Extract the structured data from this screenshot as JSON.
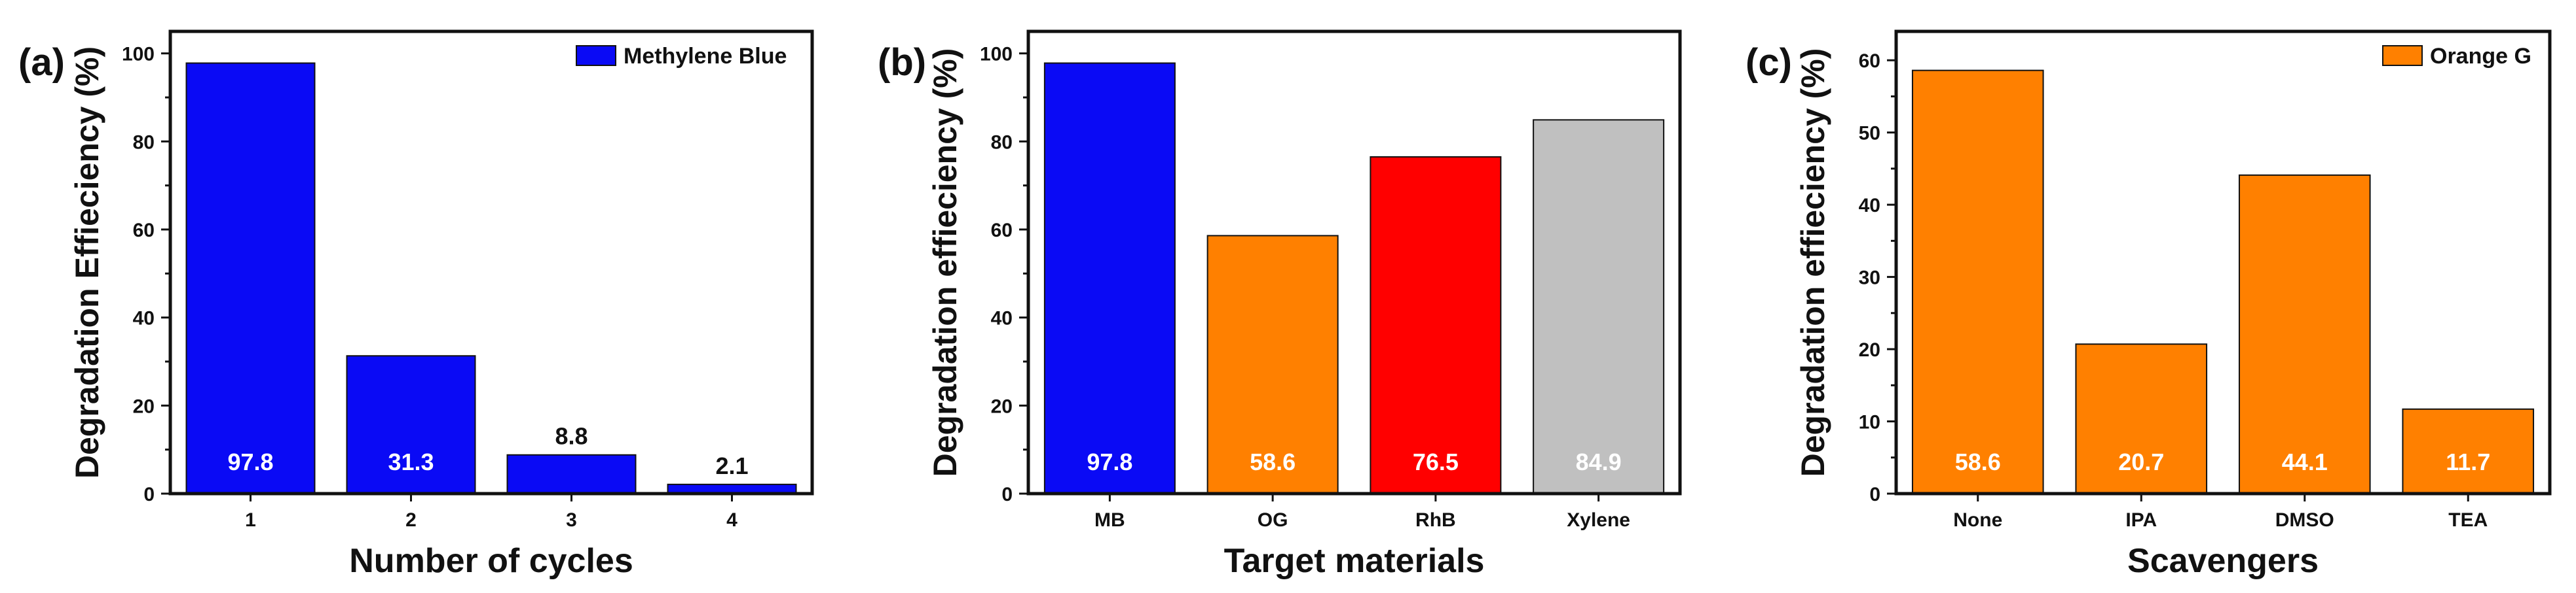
{
  "chart_data": [
    {
      "type": "bar",
      "panel_label": "(a)",
      "categories": [
        "1",
        "2",
        "3",
        "4"
      ],
      "values": [
        97.8,
        31.3,
        8.8,
        2.1
      ],
      "value_labels": [
        "97.8",
        "31.3",
        "8.8",
        "2.1"
      ],
      "colors": [
        "#0a0af5",
        "#0a0af5",
        "#0a0af5",
        "#0a0af5"
      ],
      "xlabel": "Number of cycles",
      "ylabel": "Degradation Effieciency (%)",
      "ylim": [
        0,
        105
      ],
      "yticks": [
        0,
        20,
        40,
        60,
        80,
        100
      ],
      "legend": {
        "label": "Methylene Blue",
        "color": "#0a0af5",
        "position": "top-right"
      },
      "grid": false
    },
    {
      "type": "bar",
      "panel_label": "(b)",
      "categories": [
        "MB",
        "OG",
        "RhB",
        "Xylene"
      ],
      "values": [
        97.8,
        58.6,
        76.5,
        84.9
      ],
      "value_labels": [
        "97.8",
        "58.6",
        "76.5",
        "84.9"
      ],
      "colors": [
        "#0a0af5",
        "#ff8000",
        "#ff0000",
        "#c0c0c0"
      ],
      "xlabel": "Target materials",
      "ylabel": "Degradation effieciency (%)",
      "ylim": [
        0,
        105
      ],
      "yticks": [
        0,
        20,
        40,
        60,
        80,
        100
      ],
      "grid": false
    },
    {
      "type": "bar",
      "panel_label": "(c)",
      "categories": [
        "None",
        "IPA",
        "DMSO",
        "TEA"
      ],
      "values": [
        58.6,
        20.7,
        44.1,
        11.7
      ],
      "value_labels": [
        "58.6",
        "20.7",
        "44.1",
        "11.7"
      ],
      "colors": [
        "#ff8000",
        "#ff8000",
        "#ff8000",
        "#ff8000"
      ],
      "xlabel": "Scavengers",
      "ylabel": "Degradation effieciency (%)",
      "ylim": [
        0,
        64
      ],
      "yticks": [
        0,
        10,
        20,
        30,
        40,
        50,
        60
      ],
      "legend": {
        "label": "Orange G",
        "color": "#ff8000",
        "position": "top-right"
      },
      "grid": false
    }
  ]
}
